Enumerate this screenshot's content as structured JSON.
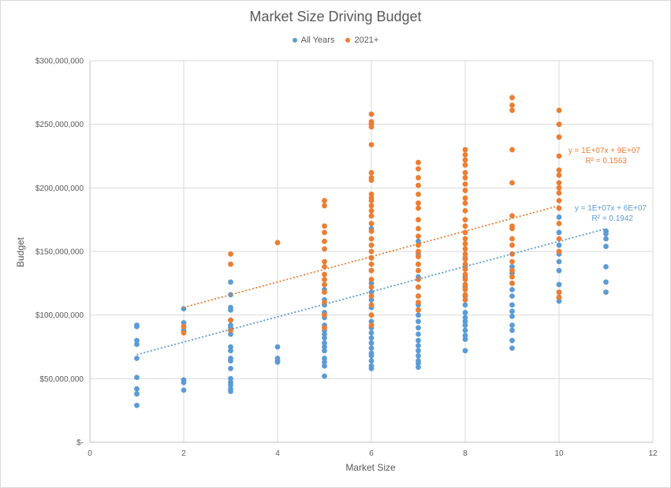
{
  "chart_data": {
    "type": "scatter",
    "title": "Market Size Driving Budget",
    "xlabel": "Market Size",
    "ylabel": "Budget",
    "xlim": [
      0,
      12
    ],
    "ylim": [
      0,
      300000000
    ],
    "x_ticks": [
      0,
      2,
      4,
      6,
      8,
      10,
      12
    ],
    "y_ticks": [
      "$-",
      "$50,000,000",
      "$100,000,000",
      "$150,000,000",
      "$200,000,000",
      "$250,000,000",
      "$300,000,000"
    ],
    "y_tick_values": [
      0,
      50000000,
      100000000,
      150000000,
      200000000,
      250000000,
      300000000
    ],
    "grid": true,
    "legend_position": "top",
    "series": [
      {
        "name": "All Years",
        "color": "#5b9bd5",
        "points": [
          [
            1,
            92000000
          ],
          [
            1,
            91000000
          ],
          [
            1,
            80000000
          ],
          [
            1,
            77000000
          ],
          [
            1,
            66000000
          ],
          [
            1,
            51000000
          ],
          [
            1,
            42000000
          ],
          [
            1,
            38000000
          ],
          [
            1,
            29000000
          ],
          [
            2,
            105000000
          ],
          [
            2,
            94000000
          ],
          [
            2,
            88000000
          ],
          [
            2,
            49000000
          ],
          [
            2,
            47000000
          ],
          [
            2,
            41000000
          ],
          [
            3,
            126000000
          ],
          [
            3,
            116000000
          ],
          [
            3,
            106000000
          ],
          [
            3,
            104000000
          ],
          [
            3,
            96000000
          ],
          [
            3,
            92000000
          ],
          [
            3,
            90000000
          ],
          [
            3,
            85000000
          ],
          [
            3,
            75000000
          ],
          [
            3,
            72000000
          ],
          [
            3,
            66000000
          ],
          [
            3,
            64000000
          ],
          [
            3,
            58000000
          ],
          [
            3,
            50000000
          ],
          [
            3,
            47000000
          ],
          [
            3,
            45000000
          ],
          [
            3,
            42000000
          ],
          [
            3,
            40000000
          ],
          [
            4,
            75000000
          ],
          [
            4,
            66000000
          ],
          [
            4,
            64000000
          ],
          [
            4,
            63000000
          ],
          [
            5,
            120000000
          ],
          [
            5,
            112000000
          ],
          [
            5,
            108000000
          ],
          [
            5,
            102000000
          ],
          [
            5,
            98000000
          ],
          [
            5,
            92000000
          ],
          [
            5,
            88000000
          ],
          [
            5,
            85000000
          ],
          [
            5,
            82000000
          ],
          [
            5,
            78000000
          ],
          [
            5,
            75000000
          ],
          [
            5,
            72000000
          ],
          [
            5,
            66000000
          ],
          [
            5,
            63000000
          ],
          [
            5,
            60000000
          ],
          [
            5,
            52000000
          ],
          [
            6,
            168000000
          ],
          [
            6,
            155000000
          ],
          [
            6,
            145000000
          ],
          [
            6,
            135000000
          ],
          [
            6,
            125000000
          ],
          [
            6,
            118000000
          ],
          [
            6,
            112000000
          ],
          [
            6,
            106000000
          ],
          [
            6,
            100000000
          ],
          [
            6,
            95000000
          ],
          [
            6,
            90000000
          ],
          [
            6,
            86000000
          ],
          [
            6,
            82000000
          ],
          [
            6,
            78000000
          ],
          [
            6,
            74000000
          ],
          [
            6,
            70000000
          ],
          [
            6,
            68000000
          ],
          [
            6,
            64000000
          ],
          [
            6,
            60000000
          ],
          [
            6,
            58000000
          ],
          [
            7,
            158000000
          ],
          [
            7,
            148000000
          ],
          [
            7,
            140000000
          ],
          [
            7,
            130000000
          ],
          [
            7,
            122000000
          ],
          [
            7,
            115000000
          ],
          [
            7,
            108000000
          ],
          [
            7,
            100000000
          ],
          [
            7,
            95000000
          ],
          [
            7,
            90000000
          ],
          [
            7,
            85000000
          ],
          [
            7,
            80000000
          ],
          [
            7,
            76000000
          ],
          [
            7,
            72000000
          ],
          [
            7,
            68000000
          ],
          [
            7,
            64000000
          ],
          [
            7,
            62000000
          ],
          [
            7,
            59000000
          ],
          [
            8,
            145000000
          ],
          [
            8,
            138000000
          ],
          [
            8,
            130000000
          ],
          [
            8,
            122000000
          ],
          [
            8,
            115000000
          ],
          [
            8,
            108000000
          ],
          [
            8,
            102000000
          ],
          [
            8,
            98000000
          ],
          [
            8,
            95000000
          ],
          [
            8,
            92000000
          ],
          [
            8,
            88000000
          ],
          [
            8,
            84000000
          ],
          [
            8,
            81000000
          ],
          [
            8,
            72000000
          ],
          [
            9,
            138000000
          ],
          [
            9,
            133000000
          ],
          [
            9,
            125000000
          ],
          [
            9,
            120000000
          ],
          [
            9,
            115000000
          ],
          [
            9,
            108000000
          ],
          [
            9,
            103000000
          ],
          [
            9,
            99000000
          ],
          [
            9,
            92000000
          ],
          [
            9,
            88000000
          ],
          [
            9,
            80000000
          ],
          [
            9,
            74000000
          ],
          [
            10,
            177000000
          ],
          [
            10,
            165000000
          ],
          [
            10,
            155000000
          ],
          [
            10,
            148000000
          ],
          [
            10,
            142000000
          ],
          [
            10,
            135000000
          ],
          [
            10,
            124000000
          ],
          [
            10,
            118000000
          ],
          [
            10,
            114000000
          ],
          [
            10,
            111000000
          ],
          [
            11,
            166000000
          ],
          [
            11,
            164000000
          ],
          [
            11,
            160000000
          ],
          [
            11,
            154000000
          ],
          [
            11,
            138000000
          ],
          [
            11,
            126000000
          ],
          [
            11,
            118000000
          ]
        ]
      },
      {
        "name": "2021+",
        "color": "#ed7d31",
        "points": [
          [
            2,
            91000000
          ],
          [
            2,
            86000000
          ],
          [
            3,
            148000000
          ],
          [
            3,
            140000000
          ],
          [
            3,
            96000000
          ],
          [
            3,
            88000000
          ],
          [
            4,
            157000000
          ],
          [
            5,
            190000000
          ],
          [
            5,
            186000000
          ],
          [
            5,
            170000000
          ],
          [
            5,
            165000000
          ],
          [
            5,
            158000000
          ],
          [
            5,
            152000000
          ],
          [
            5,
            142000000
          ],
          [
            5,
            138000000
          ],
          [
            5,
            132000000
          ],
          [
            5,
            128000000
          ],
          [
            5,
            124000000
          ],
          [
            5,
            118000000
          ],
          [
            5,
            110000000
          ],
          [
            5,
            100000000
          ],
          [
            5,
            90000000
          ],
          [
            6,
            258000000
          ],
          [
            6,
            252000000
          ],
          [
            6,
            250000000
          ],
          [
            6,
            248000000
          ],
          [
            6,
            234000000
          ],
          [
            6,
            212000000
          ],
          [
            6,
            208000000
          ],
          [
            6,
            206000000
          ],
          [
            6,
            195000000
          ],
          [
            6,
            192000000
          ],
          [
            6,
            190000000
          ],
          [
            6,
            186000000
          ],
          [
            6,
            182000000
          ],
          [
            6,
            178000000
          ],
          [
            6,
            172000000
          ],
          [
            6,
            166000000
          ],
          [
            6,
            160000000
          ],
          [
            6,
            155000000
          ],
          [
            6,
            150000000
          ],
          [
            6,
            145000000
          ],
          [
            6,
            140000000
          ],
          [
            6,
            135000000
          ],
          [
            6,
            128000000
          ],
          [
            6,
            122000000
          ],
          [
            6,
            115000000
          ],
          [
            6,
            108000000
          ],
          [
            6,
            100000000
          ],
          [
            6,
            92000000
          ],
          [
            7,
            220000000
          ],
          [
            7,
            215000000
          ],
          [
            7,
            208000000
          ],
          [
            7,
            202000000
          ],
          [
            7,
            195000000
          ],
          [
            7,
            188000000
          ],
          [
            7,
            184000000
          ],
          [
            7,
            175000000
          ],
          [
            7,
            168000000
          ],
          [
            7,
            162000000
          ],
          [
            7,
            155000000
          ],
          [
            7,
            150000000
          ],
          [
            7,
            146000000
          ],
          [
            7,
            140000000
          ],
          [
            7,
            135000000
          ],
          [
            7,
            128000000
          ],
          [
            7,
            122000000
          ],
          [
            7,
            115000000
          ],
          [
            7,
            110000000
          ],
          [
            7,
            104000000
          ],
          [
            8,
            230000000
          ],
          [
            8,
            226000000
          ],
          [
            8,
            222000000
          ],
          [
            8,
            218000000
          ],
          [
            8,
            212000000
          ],
          [
            8,
            208000000
          ],
          [
            8,
            203000000
          ],
          [
            8,
            198000000
          ],
          [
            8,
            192000000
          ],
          [
            8,
            188000000
          ],
          [
            8,
            182000000
          ],
          [
            8,
            175000000
          ],
          [
            8,
            170000000
          ],
          [
            8,
            165000000
          ],
          [
            8,
            160000000
          ],
          [
            8,
            156000000
          ],
          [
            8,
            152000000
          ],
          [
            8,
            148000000
          ],
          [
            8,
            144000000
          ],
          [
            8,
            140000000
          ],
          [
            8,
            136000000
          ],
          [
            8,
            132000000
          ],
          [
            8,
            128000000
          ],
          [
            8,
            124000000
          ],
          [
            8,
            120000000
          ],
          [
            8,
            116000000
          ],
          [
            8,
            112000000
          ],
          [
            9,
            271000000
          ],
          [
            9,
            265000000
          ],
          [
            9,
            261000000
          ],
          [
            9,
            230000000
          ],
          [
            9,
            204000000
          ],
          [
            9,
            178000000
          ],
          [
            9,
            170000000
          ],
          [
            9,
            168000000
          ],
          [
            9,
            160000000
          ],
          [
            9,
            155000000
          ],
          [
            9,
            148000000
          ],
          [
            9,
            142000000
          ],
          [
            9,
            135000000
          ],
          [
            9,
            130000000
          ],
          [
            9,
            125000000
          ],
          [
            10,
            261000000
          ],
          [
            10,
            250000000
          ],
          [
            10,
            240000000
          ],
          [
            10,
            225000000
          ],
          [
            10,
            214000000
          ],
          [
            10,
            210000000
          ],
          [
            10,
            204000000
          ],
          [
            10,
            200000000
          ],
          [
            10,
            196000000
          ],
          [
            10,
            190000000
          ],
          [
            10,
            184000000
          ],
          [
            10,
            172000000
          ],
          [
            10,
            160000000
          ],
          [
            10,
            150000000
          ],
          [
            10,
            118000000
          ],
          [
            10,
            114000000
          ]
        ]
      }
    ],
    "trendlines": [
      {
        "series": "2021+",
        "color": "#ed7d31",
        "slope": 10000000,
        "intercept": 86000000,
        "x_range": [
          2,
          10
        ],
        "equation": "y = 1E+07x + 9E+07",
        "r2": "R² = 0.1563"
      },
      {
        "series": "All Years",
        "color": "#5b9bd5",
        "slope": 9900000,
        "intercept": 59000000,
        "x_range": [
          1,
          11
        ],
        "equation": "y = 1E+07x + 6E+07",
        "r2": "R² = 0.1942"
      }
    ]
  }
}
